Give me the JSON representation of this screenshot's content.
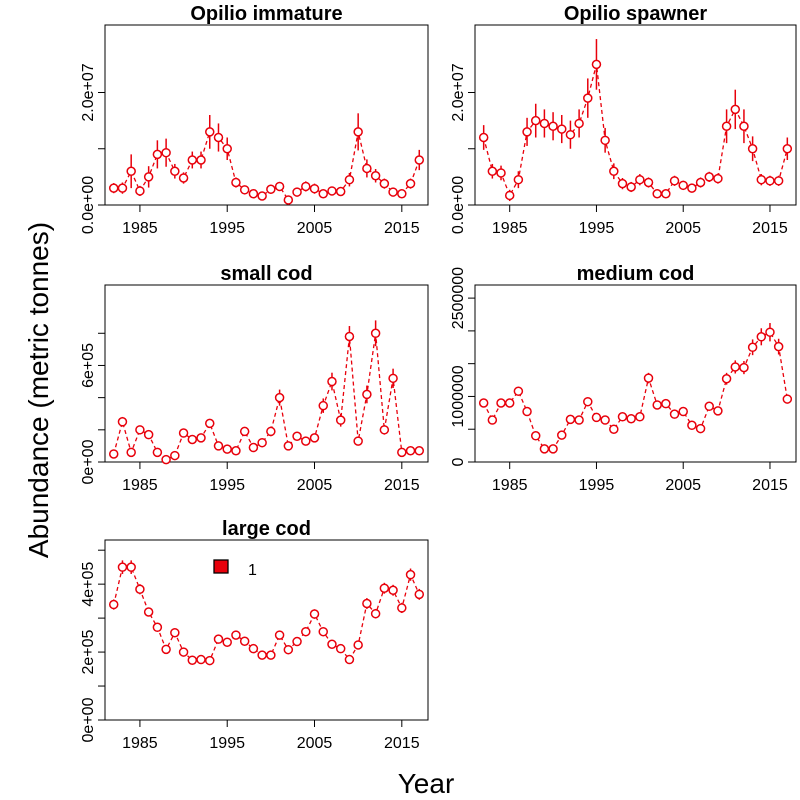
{
  "figure": {
    "ylabel": "Abundance (metric tonnes)",
    "xlabel": "Year",
    "series_color": "#e8000b",
    "legend_label": "1"
  },
  "chart_data": [
    {
      "type": "scatter",
      "title": "Opilio immature",
      "xlim": [
        1981,
        2018
      ],
      "ylim": [
        0,
        32000000
      ],
      "xticks": [
        1985,
        1995,
        2005,
        2015
      ],
      "yticks": [
        0,
        10000000,
        20000000
      ],
      "ytick_labels": [
        "0.0e+00",
        "",
        "2.0e+07"
      ],
      "x": [
        1982,
        1983,
        1984,
        1985,
        1986,
        1987,
        1988,
        1989,
        1990,
        1991,
        1992,
        1993,
        1994,
        1995,
        1996,
        1997,
        1998,
        1999,
        2000,
        2001,
        2002,
        2003,
        2004,
        2005,
        2006,
        2007,
        2008,
        2009,
        2010,
        2011,
        2012,
        2013,
        2014,
        2015,
        2016,
        2017
      ],
      "y": [
        3000000,
        3000000,
        6000000,
        2500000,
        5000000,
        9000000,
        9300000,
        6000000,
        4800000,
        8000000,
        8000000,
        13000000,
        12000000,
        10000000,
        4000000,
        2700000,
        2000000,
        1600000,
        2800000,
        3300000,
        900000,
        2300000,
        3300000,
        2900000,
        2000000,
        2500000,
        2400000,
        4500000,
        13000000,
        6500000,
        5200000,
        3800000,
        2300000,
        2000000,
        3800000,
        8000000
      ],
      "err": [
        900000,
        1000000,
        3000000,
        900000,
        1900000,
        2500000,
        2500000,
        1300000,
        1000000,
        1500000,
        1500000,
        3000000,
        2500000,
        2000000,
        900000,
        700000,
        600000,
        500000,
        800000,
        800000,
        700000,
        800000,
        900000,
        900000,
        600000,
        700000,
        800000,
        1200000,
        3300000,
        1600000,
        1200000,
        900000,
        600000,
        500000,
        900000,
        1800000
      ]
    },
    {
      "type": "scatter",
      "title": "Opilio spawner",
      "xlim": [
        1981,
        2018
      ],
      "ylim": [
        0,
        32000000
      ],
      "xticks": [
        1985,
        1995,
        2005,
        2015
      ],
      "yticks": [
        0,
        10000000,
        20000000
      ],
      "ytick_labels": [
        "0.0e+00",
        "",
        "2.0e+07"
      ],
      "x": [
        1982,
        1983,
        1984,
        1985,
        1986,
        1987,
        1988,
        1989,
        1990,
        1991,
        1992,
        1993,
        1994,
        1995,
        1996,
        1997,
        1998,
        1999,
        2000,
        2001,
        2002,
        2003,
        2004,
        2005,
        2006,
        2007,
        2008,
        2009,
        2010,
        2011,
        2012,
        2013,
        2014,
        2015,
        2016,
        2017
      ],
      "y": [
        12000000,
        6000000,
        5700000,
        1700000,
        4500000,
        13000000,
        15000000,
        14500000,
        14000000,
        13500000,
        12500000,
        14500000,
        19000000,
        25000000,
        11500000,
        6000000,
        3800000,
        3200000,
        4500000,
        4000000,
        2000000,
        2000000,
        4300000,
        3500000,
        3000000,
        4000000,
        5000000,
        4700000,
        14000000,
        17000000,
        14000000,
        10000000,
        4500000,
        4300000,
        4300000,
        10000000
      ],
      "err": [
        2200000,
        1300000,
        1300000,
        1000000,
        1500000,
        2500000,
        3000000,
        2500000,
        2500000,
        2500000,
        2500000,
        2500000,
        3500000,
        4500000,
        2200000,
        1400000,
        1000000,
        900000,
        1000000,
        900000,
        700000,
        700000,
        900000,
        800000,
        800000,
        900000,
        900000,
        900000,
        3000000,
        3500000,
        3000000,
        2200000,
        1000000,
        900000,
        900000,
        2000000
      ]
    },
    {
      "type": "scatter",
      "title": "small cod",
      "xlim": [
        1981,
        2018
      ],
      "ylim": [
        0,
        1100000
      ],
      "xticks": [
        1985,
        1995,
        2005,
        2015
      ],
      "yticks": [
        0,
        200000,
        400000,
        600000,
        800000
      ],
      "ytick_labels": [
        "0e+00",
        "",
        "",
        "6e+05",
        ""
      ],
      "x": [
        1982,
        1983,
        1984,
        1985,
        1986,
        1987,
        1988,
        1989,
        1990,
        1991,
        1992,
        1993,
        1994,
        1995,
        1996,
        1997,
        1998,
        1999,
        2000,
        2001,
        2002,
        2003,
        2004,
        2005,
        2006,
        2007,
        2008,
        2009,
        2010,
        2011,
        2012,
        2013,
        2014,
        2015,
        2016,
        2017
      ],
      "y": [
        50000,
        250000,
        60000,
        200000,
        170000,
        60000,
        15000,
        40000,
        180000,
        140000,
        150000,
        240000,
        100000,
        80000,
        70000,
        190000,
        90000,
        120000,
        190000,
        400000,
        100000,
        160000,
        130000,
        150000,
        350000,
        500000,
        260000,
        780000,
        130000,
        420000,
        800000,
        200000,
        520000,
        60000,
        70000,
        70000
      ],
      "err": [
        25000,
        30000,
        25000,
        25000,
        25000,
        25000,
        20000,
        20000,
        25000,
        25000,
        25000,
        25000,
        25000,
        25000,
        25000,
        25000,
        25000,
        25000,
        30000,
        50000,
        25000,
        25000,
        25000,
        25000,
        45000,
        55000,
        40000,
        65000,
        25000,
        55000,
        80000,
        30000,
        60000,
        25000,
        25000,
        25000
      ]
    },
    {
      "type": "scatter",
      "title": "medium cod",
      "xlim": [
        1981,
        2018
      ],
      "ylim": [
        0,
        2700000
      ],
      "xticks": [
        1985,
        1995,
        2005,
        2015
      ],
      "yticks": [
        0,
        500000,
        1000000,
        1500000,
        2000000,
        2500000
      ],
      "ytick_labels": [
        "0",
        "",
        "1000000",
        "",
        "",
        "2500000"
      ],
      "x": [
        1982,
        1983,
        1984,
        1985,
        1986,
        1987,
        1988,
        1989,
        1990,
        1991,
        1992,
        1993,
        1994,
        1995,
        1996,
        1997,
        1998,
        1999,
        2000,
        2001,
        2002,
        2003,
        2004,
        2005,
        2006,
        2007,
        2008,
        2009,
        2010,
        2011,
        2012,
        2013,
        2014,
        2015,
        2016,
        2017
      ],
      "y": [
        900000,
        640000,
        900000,
        900000,
        1080000,
        770000,
        400000,
        200000,
        200000,
        410000,
        650000,
        640000,
        920000,
        680000,
        640000,
        500000,
        690000,
        660000,
        690000,
        1280000,
        870000,
        890000,
        730000,
        770000,
        560000,
        510000,
        850000,
        780000,
        1270000,
        1450000,
        1440000,
        1750000,
        1910000,
        1980000,
        1760000,
        960000
      ],
      "err": [
        50000,
        50000,
        50000,
        50000,
        60000,
        50000,
        50000,
        50000,
        50000,
        50000,
        50000,
        50000,
        60000,
        50000,
        50000,
        50000,
        50000,
        50000,
        50000,
        80000,
        60000,
        60000,
        50000,
        50000,
        60000,
        50000,
        60000,
        60000,
        90000,
        100000,
        100000,
        120000,
        130000,
        140000,
        120000,
        60000
      ]
    },
    {
      "type": "scatter",
      "title": "large cod",
      "xlim": [
        1981,
        2018
      ],
      "ylim": [
        0,
        530000
      ],
      "xticks": [
        1985,
        1995,
        2005,
        2015
      ],
      "yticks": [
        0,
        100000,
        200000,
        300000,
        400000,
        500000
      ],
      "ytick_labels": [
        "0e+00",
        "",
        "2e+05",
        "",
        "4e+05",
        ""
      ],
      "x": [
        1982,
        1983,
        1984,
        1985,
        1986,
        1987,
        1988,
        1989,
        1990,
        1991,
        1992,
        1993,
        1994,
        1995,
        1996,
        1997,
        1998,
        1999,
        2000,
        2001,
        2002,
        2003,
        2004,
        2005,
        2006,
        2007,
        2008,
        2009,
        2010,
        2011,
        2012,
        2013,
        2014,
        2015,
        2016,
        2017
      ],
      "y": [
        340000,
        450000,
        450000,
        385000,
        318000,
        273000,
        208000,
        257000,
        200000,
        176000,
        178000,
        175000,
        238000,
        229000,
        250000,
        232000,
        210000,
        191000,
        191000,
        250000,
        207000,
        231000,
        260000,
        312000,
        260000,
        223000,
        210000,
        178000,
        221000,
        343000,
        313000,
        388000,
        382000,
        330000,
        428000,
        370000
      ],
      "err": [
        15000,
        20000,
        20000,
        15000,
        12000,
        12000,
        12000,
        12000,
        10000,
        10000,
        10000,
        10000,
        12000,
        12000,
        12000,
        12000,
        12000,
        10000,
        10000,
        12000,
        12000,
        12000,
        12000,
        14000,
        12000,
        12000,
        12000,
        10000,
        12000,
        16000,
        14000,
        16000,
        16000,
        15000,
        18000,
        16000
      ]
    }
  ]
}
